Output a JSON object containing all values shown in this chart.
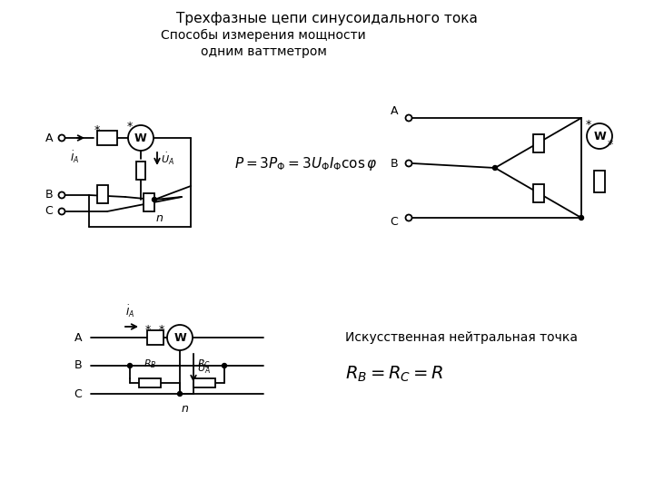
{
  "title1": "Трехфазные цепи синусоидального тока",
  "title2": "Способы измерения мощности\nодним ваттметром",
  "formula1": "$P = 3P_{\\Phi} = 3U_{\\Phi}I_{\\Phi}\\cos\\varphi$",
  "label_artificial": "Искусственная нейтральная точка",
  "formula2": "$R_B = R_C = R$",
  "bg_color": "#ffffff",
  "line_color": "#000000"
}
